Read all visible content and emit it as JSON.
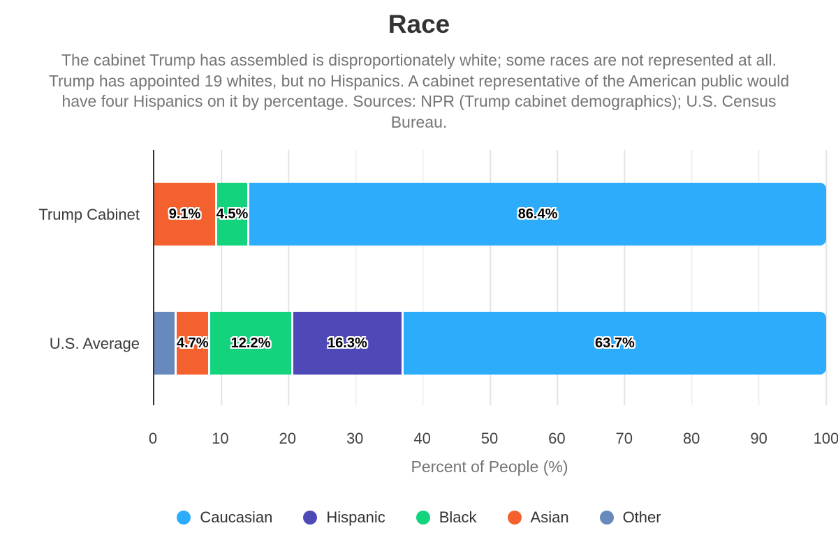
{
  "header": {
    "title": "Race",
    "subtitle": "The cabinet Trump has assembled is disproportionately white; some races are not represented at all. Trump has appointed 19 whites, but no Hispanics. A cabinet representative of the American public would have four Hispanics on it by percentage. Sources: NPR (Trump cabinet demographics); U.S. Census Bureau."
  },
  "chart_data": {
    "type": "bar",
    "orientation": "horizontal",
    "stacked": true,
    "title": "Race",
    "xlabel": "Percent of People (%)",
    "ylabel": "",
    "xlim": [
      0,
      100
    ],
    "x_ticks": [
      0,
      10,
      20,
      30,
      40,
      50,
      60,
      70,
      80,
      90,
      100
    ],
    "grid": "vertical",
    "legend_position": "bottom",
    "categories": [
      "Trump Cabinet",
      "U.S. Average"
    ],
    "series": [
      {
        "name": "Caucasian",
        "color": "#2DACFB",
        "values": [
          86.4,
          63.7
        ]
      },
      {
        "name": "Hispanic",
        "color": "#4E49B7",
        "values": [
          0,
          16.3
        ]
      },
      {
        "name": "Black",
        "color": "#13D47D",
        "values": [
          4.5,
          12.2
        ]
      },
      {
        "name": "Asian",
        "color": "#F4612E",
        "values": [
          9.1,
          4.7
        ]
      },
      {
        "name": "Other",
        "color": "#6789BD",
        "values": [
          0,
          3.1
        ]
      }
    ],
    "bars": [
      {
        "category": "Trump Cabinet",
        "segments": [
          {
            "name": "Asian",
            "value": 9.1,
            "label": "9.1%"
          },
          {
            "name": "Black",
            "value": 4.5,
            "label": "4.5%"
          },
          {
            "name": "Caucasian",
            "value": 86.4,
            "label": "86.4%"
          }
        ]
      },
      {
        "category": "U.S. Average",
        "segments": [
          {
            "name": "Other",
            "value": 3.1,
            "label": ""
          },
          {
            "name": "Asian",
            "value": 4.7,
            "label": "4.7%"
          },
          {
            "name": "Black",
            "value": 12.2,
            "label": "12.2%"
          },
          {
            "name": "Hispanic",
            "value": 16.3,
            "label": "16.3%"
          },
          {
            "name": "Caucasian",
            "value": 63.7,
            "label": "63.7%"
          }
        ]
      }
    ],
    "legend": [
      {
        "label": "Caucasian",
        "color": "#2DACFB"
      },
      {
        "label": "Hispanic",
        "color": "#4E49B7"
      },
      {
        "label": "Black",
        "color": "#13D47D"
      },
      {
        "label": "Asian",
        "color": "#F4612E"
      },
      {
        "label": "Other",
        "color": "#6789BD"
      }
    ],
    "colors": {
      "grid": "#E3E3E3",
      "axis": "#333333",
      "data_label_text": "#000000",
      "data_label_outline": "#FFFFFF"
    }
  }
}
